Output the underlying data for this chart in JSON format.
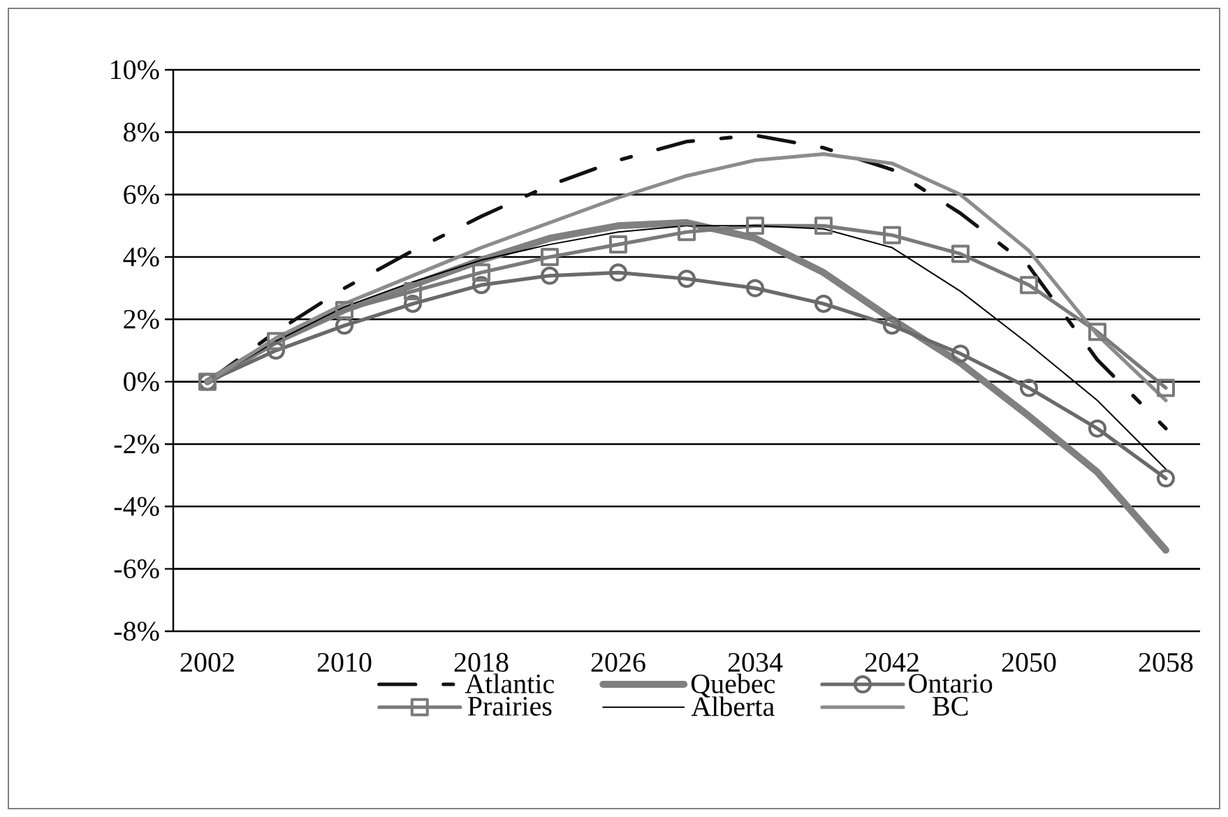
{
  "chart_data": {
    "type": "line",
    "categories": [
      "2002",
      null,
      "2010",
      null,
      "2018",
      null,
      "2026",
      null,
      "2034",
      null,
      "2042",
      null,
      "2050",
      null,
      "2058"
    ],
    "series": [
      {
        "name": "Atlantic",
        "color": "#111111",
        "line_style": "dashed",
        "marker": "none",
        "values": [
          0,
          1.6,
          3.0,
          4.2,
          5.3,
          6.3,
          7.1,
          7.7,
          7.9,
          7.5,
          6.8,
          5.4,
          3.7,
          0.7,
          -1.5
        ]
      },
      {
        "name": "Quebec",
        "color": "#808080",
        "marker": "none",
        "values": [
          0,
          1.3,
          2.3,
          3.1,
          3.9,
          4.6,
          5.0,
          5.1,
          4.6,
          3.5,
          2.0,
          0.6,
          -1.1,
          -2.9,
          -5.4
        ]
      },
      {
        "name": "Ontario",
        "color": "#6a6a6a",
        "marker": "circle",
        "values": [
          0,
          1.0,
          1.8,
          2.5,
          3.1,
          3.4,
          3.5,
          3.3,
          3.0,
          2.5,
          1.8,
          0.9,
          -0.2,
          -1.5,
          -3.1
        ]
      },
      {
        "name": "Prairies",
        "color": "#7a7a7a",
        "marker": "square",
        "values": [
          0,
          1.3,
          2.3,
          2.9,
          3.5,
          4.0,
          4.4,
          4.8,
          5.0,
          5.0,
          4.7,
          4.1,
          3.1,
          1.6,
          -0.2
        ]
      },
      {
        "name": "Alberta",
        "color": "#000000",
        "marker": "none",
        "values": [
          0,
          1.3,
          2.4,
          3.2,
          3.9,
          4.4,
          4.8,
          5.0,
          5.0,
          4.9,
          4.3,
          2.9,
          1.2,
          -0.6,
          -2.8
        ]
      },
      {
        "name": "BC",
        "color": "#8c8c8c",
        "marker": "none",
        "values": [
          0,
          1.4,
          2.5,
          3.4,
          4.3,
          5.1,
          5.9,
          6.6,
          7.1,
          7.3,
          7.0,
          6.0,
          4.2,
          1.5,
          -0.6
        ]
      }
    ],
    "ylim": [
      -8,
      10
    ],
    "yticks": [
      {
        "value": -8,
        "label": "-8%"
      },
      {
        "value": -6,
        "label": "-6%"
      },
      {
        "value": -4,
        "label": "-4%"
      },
      {
        "value": -2,
        "label": "-2%"
      },
      {
        "value": 0,
        "label": "0%"
      },
      {
        "value": 2,
        "label": "2%"
      },
      {
        "value": 4,
        "label": "4%"
      },
      {
        "value": 6,
        "label": "6%"
      },
      {
        "value": 8,
        "label": "8%"
      },
      {
        "value": 10,
        "label": "10%"
      }
    ],
    "grid": "y",
    "legend": "bottom"
  }
}
